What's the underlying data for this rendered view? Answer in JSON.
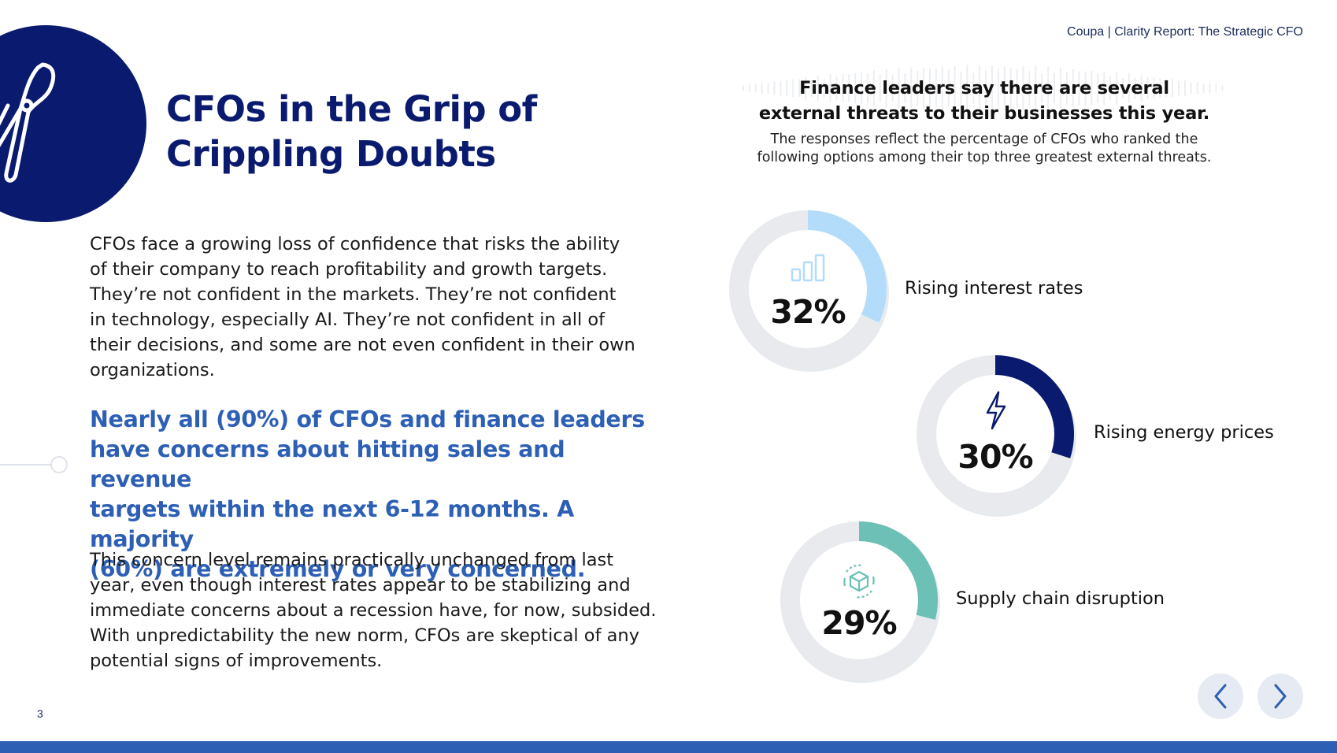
{
  "header": {
    "breadcrumb": "Coupa | Clarity Report: The Strategic CFO"
  },
  "page": {
    "title": "CFOs in the Grip of\nCrippling Doubts",
    "number": "3"
  },
  "body": {
    "paragraph_1": "CFOs face a growing loss of confidence that risks the ability\nof their company to reach profitability and growth targets.\nThey’re not confident in the markets. They’re not confident\nin technology, especially AI. They’re not confident in all of\ntheir decisions, and some are not even confident in their own\norganizations.",
    "highlight": "Nearly all (90%) of CFOs and finance leaders\nhave concerns about hitting sales and revenue\ntargets within the next 6-12 months. A majority\n(60%) are extremely or very concerned.",
    "paragraph_3": "This concern level remains practically unchanged from last\nyear, even though interest rates appear to be stabilizing and\nimmediate concerns about a recession have, for now, subsided.\nWith unpredictability the new norm, CFOs are skeptical of any\npotential signs of improvements."
  },
  "panel": {
    "title": "Finance leaders say there are several\nexternal threats to their businesses this year.",
    "subtitle": "The responses reflect the percentage of CFOs who ranked the\nfollowing options among their top three greatest external threats."
  },
  "chart_data": {
    "type": "pie",
    "items": [
      {
        "label": "Rising interest rates",
        "value": 32,
        "display": "32%",
        "color": "#b3dcfb",
        "icon": "bar-chart-icon"
      },
      {
        "label": "Rising energy prices",
        "value": 30,
        "display": "30%",
        "color": "#0a1a6e",
        "icon": "lightning-bolt-icon"
      },
      {
        "label": "Supply chain disruption",
        "value": 29,
        "display": "29%",
        "color": "#6cc0b5",
        "icon": "supply-chain-cube-icon"
      }
    ]
  },
  "navigation": {
    "prev_icon": "chevron-left-icon",
    "next_icon": "chevron-right-icon"
  },
  "colors": {
    "navy": "#0a1a6e",
    "accent_blue": "#2d5fb5",
    "track_gray": "#e8eaee"
  }
}
